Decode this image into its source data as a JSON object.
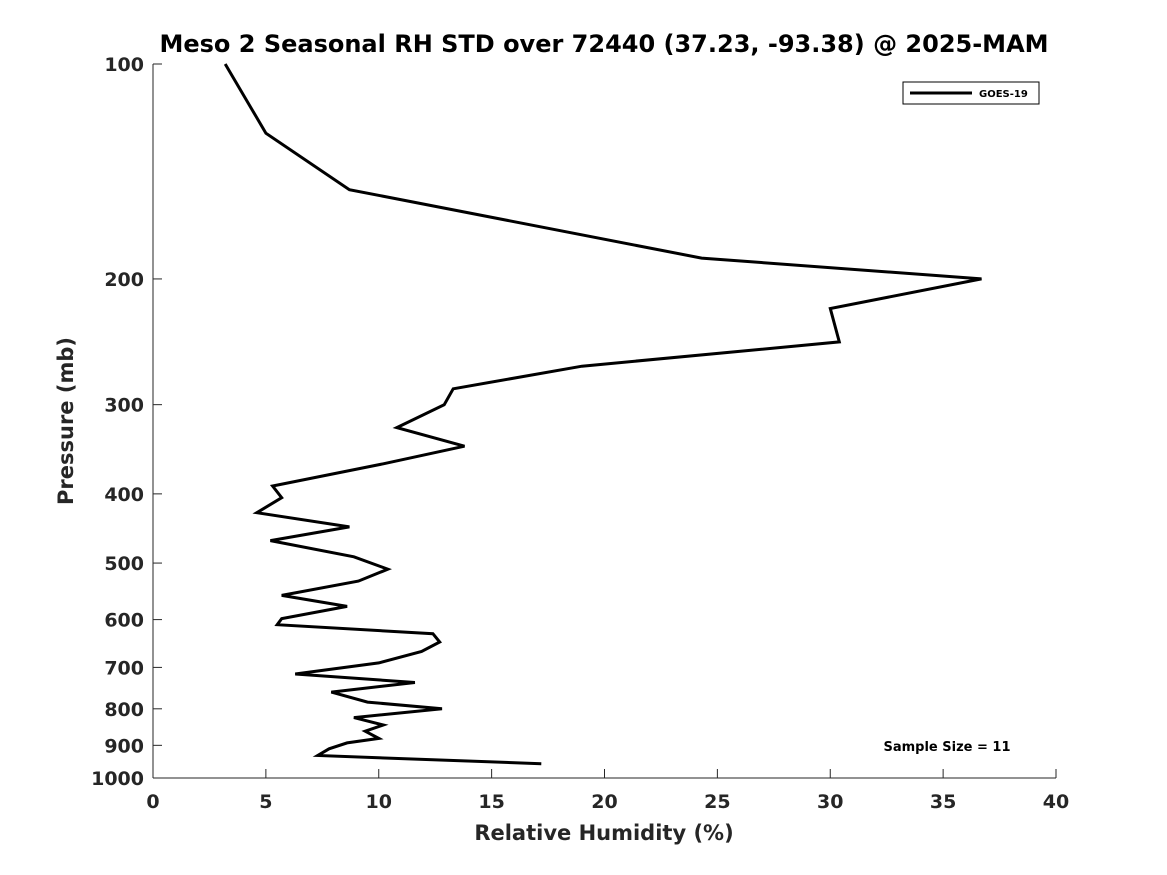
{
  "chart_data": {
    "type": "line",
    "title": "Meso 2 Seasonal RH STD over 72440 (37.23, -93.38) @ 2025-MAM",
    "xlabel": "Relative Humidity (%)",
    "ylabel": "Pressure (mb)",
    "xlim": [
      0,
      40
    ],
    "ylim": [
      100,
      1000
    ],
    "yscale": "log",
    "y_reversed": true,
    "x_ticks": [
      "0",
      "5",
      "10",
      "15",
      "20",
      "25",
      "30",
      "35",
      "40"
    ],
    "y_ticks": [
      "100",
      "200",
      "300",
      "400",
      "500",
      "600",
      "700",
      "800",
      "900",
      "1000"
    ],
    "grid": false,
    "legend": {
      "position": "top-right",
      "entries": [
        "GOES-19"
      ]
    },
    "annotation": "Sample Size = 11",
    "series": [
      {
        "name": "GOES-19",
        "color": "#000000",
        "points": [
          [
            3.2,
            100
          ],
          [
            5.0,
            125
          ],
          [
            8.7,
            150
          ],
          [
            24.3,
            187
          ],
          [
            36.7,
            200
          ],
          [
            30.0,
            220
          ],
          [
            30.4,
            245
          ],
          [
            19.0,
            265
          ],
          [
            13.3,
            285
          ],
          [
            12.9,
            300
          ],
          [
            10.8,
            323
          ],
          [
            13.8,
            343
          ],
          [
            10.2,
            363
          ],
          [
            5.3,
            390
          ],
          [
            5.7,
            405
          ],
          [
            4.6,
            425
          ],
          [
            8.7,
            445
          ],
          [
            5.2,
            465
          ],
          [
            8.9,
            490
          ],
          [
            10.4,
            510
          ],
          [
            9.1,
            530
          ],
          [
            5.7,
            555
          ],
          [
            8.6,
            575
          ],
          [
            5.7,
            598
          ],
          [
            5.5,
            610
          ],
          [
            12.4,
            628
          ],
          [
            12.7,
            645
          ],
          [
            11.9,
            665
          ],
          [
            10.0,
            690
          ],
          [
            6.3,
            715
          ],
          [
            11.6,
            735
          ],
          [
            7.9,
            758
          ],
          [
            9.5,
            783
          ],
          [
            12.8,
            800
          ],
          [
            8.9,
            823
          ],
          [
            10.2,
            843
          ],
          [
            9.4,
            860
          ],
          [
            10.0,
            880
          ],
          [
            8.6,
            893
          ],
          [
            7.8,
            910
          ],
          [
            7.3,
            930
          ],
          [
            17.2,
            955
          ]
        ]
      }
    ]
  }
}
